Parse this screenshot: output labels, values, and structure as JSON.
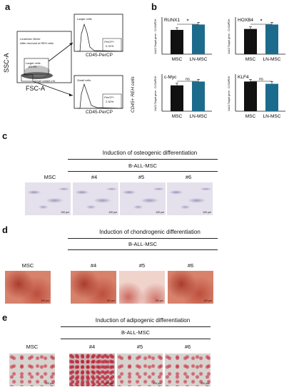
{
  "panels": {
    "a": {
      "letter": "a",
      "flow": {
        "yaxis": "SSC-A",
        "xaxis": "FSC-A",
        "niche_title": "Leukemic Niche",
        "niche_sub": "After removal of REH cells",
        "larger_gate": "Larger cells",
        "larger_pct": "83.5%",
        "small_gate": "Small cells",
        "small_pct": "16.1%"
      },
      "top_hist": {
        "title": "Larger cells",
        "gate": "PerCP+",
        "pct": "0.31%",
        "xaxis": "CD45-PerCP"
      },
      "bottom_hist": {
        "title": "Small cells",
        "gate": "PerCP+",
        "pct": "2.92%",
        "xaxis": "CD45-PerCP"
      },
      "side_label": "CD45+ REH cells"
    },
    "b": {
      "letter": "b",
      "ylabel": "1/ΔCt Target gene - Ct GAPDH",
      "categories": [
        "MSC",
        "LN-MSC"
      ],
      "sig": [
        "*",
        "*",
        "ns",
        "ns"
      ]
    },
    "c": {
      "letter": "c",
      "title": "Induction of osteogenic differentiation",
      "group": "B-ALL-MSC",
      "samples": [
        "MSC",
        "#4",
        "#5",
        "#6"
      ],
      "scale": "100 µm"
    },
    "d": {
      "letter": "d",
      "title": "Induction of chondrogenic differentiation",
      "group": "B-ALL-MSC",
      "samples": [
        "MSC",
        "#4",
        "#5",
        "#6"
      ],
      "scale": "100 µm"
    },
    "e": {
      "letter": "e",
      "title": "Induction of adipogenic differentiation",
      "group": "B-ALL-MSC",
      "samples": [
        "MSC",
        "#4",
        "#5",
        "#6"
      ],
      "scale": "100 µm"
    }
  },
  "chart_data": [
    {
      "type": "bar",
      "title": "RUNX1",
      "categories": [
        "MSC",
        "LN-MSC"
      ],
      "values": [
        0.135,
        0.165
      ],
      "ylabel": "1/ΔCt Target gene - Ct GAPDH",
      "significance": "*",
      "colors": [
        "#111111",
        "#1d6b8c"
      ]
    },
    {
      "type": "bar",
      "title": "HOXB4",
      "categories": [
        "MSC",
        "LN-MSC"
      ],
      "values": [
        0.085,
        0.1
      ],
      "ylabel": "1/ΔCt Target gene - Ct GAPDH",
      "significance": "*",
      "colors": [
        "#111111",
        "#1d6b8c"
      ]
    },
    {
      "type": "bar",
      "title": "c-Myc",
      "categories": [
        "MSC",
        "LN-MSC"
      ],
      "values": [
        0.135,
        0.155
      ],
      "ylabel": "1/ΔCt Target gene - Ct GAPDH",
      "significance": "ns",
      "colors": [
        "#111111",
        "#1d6b8c"
      ]
    },
    {
      "type": "bar",
      "title": "KLF4",
      "categories": [
        "MSC",
        "LN-MSC"
      ],
      "values": [
        0.065,
        0.06
      ],
      "ylabel": "1/ΔCt Target gene - Ct GAPDH",
      "significance": "ns",
      "colors": [
        "#111111",
        "#1d6b8c"
      ]
    }
  ]
}
